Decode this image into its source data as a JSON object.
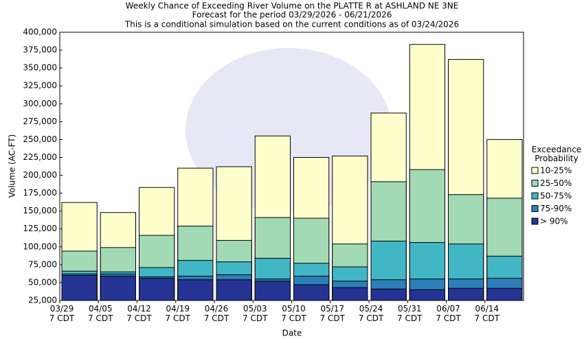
{
  "chart_data": {
    "type": "bar",
    "title": [
      "Weekly Chance of Exceeding River Volume on the PLATTE R at ASHLAND NE 3NE",
      "Forecast for the period 03/29/2026 - 06/21/2026",
      "This is a conditional simulation based on the current conditions as of 03/24/2026"
    ],
    "xlabel": "Date",
    "ylabel": "Volume (AC-FT)",
    "legend_title": "Exceedance\nProbability",
    "legend": "right",
    "grid": false,
    "categories": [
      "03/29\n7 CDT",
      "04/05\n7 CDT",
      "04/12\n7 CDT",
      "04/19\n7 CDT",
      "04/26\n7 CDT",
      "05/03\n7 CDT",
      "05/10\n7 CDT",
      "05/17\n7 CDT",
      "05/24\n7 CDT",
      "05/31\n7 CDT",
      "06/07\n7 CDT",
      "06/14\n7 CDT"
    ],
    "series": [
      {
        "name": "10-25%",
        "color": "#ffffcc",
        "values": [
          162000,
          148000,
          183000,
          210000,
          212000,
          255000,
          225000,
          227000,
          287000,
          383000,
          362000,
          250000
        ]
      },
      {
        "name": "25-50%",
        "color": "#a1dab4",
        "values": [
          94000,
          99000,
          116000,
          129000,
          109000,
          141000,
          140000,
          104000,
          191000,
          208000,
          173000,
          168000
        ]
      },
      {
        "name": "50-75%",
        "color": "#41b6c4",
        "values": [
          66000,
          65000,
          71000,
          81000,
          79000,
          84000,
          77000,
          72000,
          108000,
          106000,
          104000,
          87000
        ]
      },
      {
        "name": "75-90%",
        "color": "#2c7fb8",
        "values": [
          62000,
          62000,
          58000,
          59000,
          61000,
          55000,
          59000,
          52000,
          54000,
          55000,
          55000,
          56000
        ]
      },
      {
        "name": "> 90%",
        "color": "#253494",
        "values": [
          60000,
          59000,
          56000,
          54000,
          54000,
          52000,
          47000,
          43000,
          41000,
          40000,
          42000,
          42000
        ]
      }
    ],
    "ylim": [
      25000,
      400000
    ],
    "yticks": [
      {
        "value": 25000,
        "label": "25,000"
      },
      {
        "value": 50000,
        "label": "50,000"
      },
      {
        "value": 75000,
        "label": "75,000"
      },
      {
        "value": 100000,
        "label": "100,000"
      },
      {
        "value": 125000,
        "label": "125,000"
      },
      {
        "value": 150000,
        "label": "150,000"
      },
      {
        "value": 175000,
        "label": "175,000"
      },
      {
        "value": 200000,
        "label": "200,000"
      },
      {
        "value": 225000,
        "label": "225,000"
      },
      {
        "value": 250000,
        "label": "250,000"
      },
      {
        "value": 275000,
        "label": "275,000"
      },
      {
        "value": 300000,
        "label": "300,000"
      },
      {
        "value": 325000,
        "label": "325,000"
      },
      {
        "value": 350000,
        "label": "350,000"
      },
      {
        "value": 375000,
        "label": "375,000"
      },
      {
        "value": 400000,
        "label": "400,000"
      }
    ]
  }
}
